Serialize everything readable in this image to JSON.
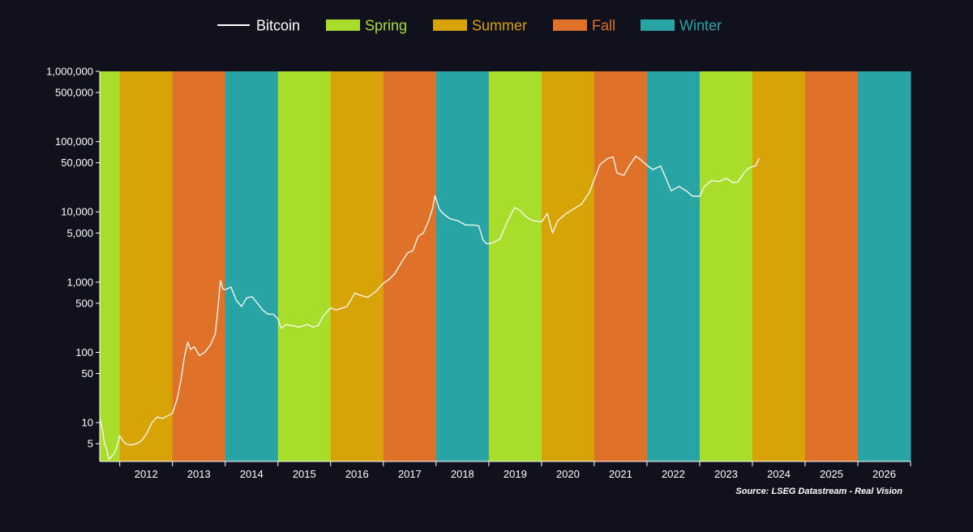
{
  "colors": {
    "background": "#10111c",
    "spring": "#a9dd2b",
    "summer": "#d8a306",
    "fall": "#e07129",
    "winter": "#29a4a4",
    "line": "#ffffff"
  },
  "legend": [
    {
      "label": "Bitcoin",
      "kind": "line",
      "color": "#ffffff"
    },
    {
      "label": "Spring",
      "kind": "swatch",
      "color": "#a9dd2b"
    },
    {
      "label": "Summer",
      "kind": "swatch",
      "color": "#d8a306"
    },
    {
      "label": "Fall",
      "kind": "swatch",
      "color": "#e07129"
    },
    {
      "label": "Winter",
      "kind": "swatch",
      "color": "#29a4a4"
    }
  ],
  "source": "Source: LSEG Datastream - Real Vision",
  "chart_data": {
    "type": "line",
    "scale": "log",
    "xlim": [
      2011.61,
      2026.99
    ],
    "ylim": [
      2.8,
      1000000
    ],
    "legend_position": "top",
    "grid": false,
    "x_ticks": [
      "2012",
      "2013",
      "2014",
      "2015",
      "2016",
      "2017",
      "2018",
      "2019",
      "2020",
      "2021",
      "2022",
      "2023",
      "2024",
      "2025",
      "2026"
    ],
    "y_ticks": [
      {
        "value": 1000000,
        "label": "1,000,000"
      },
      {
        "value": 500000,
        "label": "500,000"
      },
      {
        "value": 100000,
        "label": "100,000"
      },
      {
        "value": 50000,
        "label": "50,000"
      },
      {
        "value": 10000,
        "label": "10,000"
      },
      {
        "value": 5000,
        "label": "5,000"
      },
      {
        "value": 1000,
        "label": "1,000"
      },
      {
        "value": 500,
        "label": "500"
      },
      {
        "value": 100,
        "label": "100"
      },
      {
        "value": 50,
        "label": "50"
      },
      {
        "value": 10,
        "label": "10"
      },
      {
        "value": 5,
        "label": "5"
      }
    ],
    "seasons": [
      {
        "season": "spring",
        "start": 2011.61,
        "end": 2011.99
      },
      {
        "season": "summer",
        "start": 2011.99,
        "end": 2012.99
      },
      {
        "season": "fall",
        "start": 2012.99,
        "end": 2013.99
      },
      {
        "season": "winter",
        "start": 2013.99,
        "end": 2014.99
      },
      {
        "season": "spring",
        "start": 2014.99,
        "end": 2015.99
      },
      {
        "season": "summer",
        "start": 2015.99,
        "end": 2016.99
      },
      {
        "season": "fall",
        "start": 2016.99,
        "end": 2017.99
      },
      {
        "season": "winter",
        "start": 2017.99,
        "end": 2018.99
      },
      {
        "season": "spring",
        "start": 2018.99,
        "end": 2019.99
      },
      {
        "season": "summer",
        "start": 2019.99,
        "end": 2020.99
      },
      {
        "season": "fall",
        "start": 2020.99,
        "end": 2021.99
      },
      {
        "season": "winter",
        "start": 2021.99,
        "end": 2022.99
      },
      {
        "season": "spring",
        "start": 2022.99,
        "end": 2023.99
      },
      {
        "season": "summer",
        "start": 2023.99,
        "end": 2024.99
      },
      {
        "season": "fall",
        "start": 2024.99,
        "end": 2025.99
      },
      {
        "season": "winter",
        "start": 2025.99,
        "end": 2026.99
      }
    ],
    "series": [
      {
        "name": "Bitcoin",
        "points": [
          [
            2011.62,
            11
          ],
          [
            2011.66,
            8
          ],
          [
            2011.7,
            5
          ],
          [
            2011.74,
            4.2
          ],
          [
            2011.78,
            3
          ],
          [
            2011.82,
            3.2
          ],
          [
            2011.86,
            3.5
          ],
          [
            2011.9,
            3.8
          ],
          [
            2011.95,
            5
          ],
          [
            2011.99,
            6.5
          ],
          [
            2012.05,
            5.5
          ],
          [
            2012.1,
            5
          ],
          [
            2012.2,
            4.8
          ],
          [
            2012.3,
            5
          ],
          [
            2012.4,
            5.5
          ],
          [
            2012.5,
            7
          ],
          [
            2012.6,
            10
          ],
          [
            2012.7,
            12
          ],
          [
            2012.8,
            11.5
          ],
          [
            2012.9,
            12.5
          ],
          [
            2012.99,
            13.5
          ],
          [
            2013.08,
            22
          ],
          [
            2013.15,
            40
          ],
          [
            2013.22,
            90
          ],
          [
            2013.28,
            140
          ],
          [
            2013.33,
            110
          ],
          [
            2013.4,
            120
          ],
          [
            2013.5,
            90
          ],
          [
            2013.6,
            100
          ],
          [
            2013.7,
            125
          ],
          [
            2013.8,
            180
          ],
          [
            2013.85,
            400
          ],
          [
            2013.9,
            1050
          ],
          [
            2013.95,
            800
          ],
          [
            2013.99,
            780
          ],
          [
            2014.1,
            850
          ],
          [
            2014.2,
            550
          ],
          [
            2014.3,
            450
          ],
          [
            2014.4,
            600
          ],
          [
            2014.5,
            620
          ],
          [
            2014.6,
            500
          ],
          [
            2014.7,
            400
          ],
          [
            2014.8,
            350
          ],
          [
            2014.9,
            350
          ],
          [
            2014.99,
            300
          ],
          [
            2015.05,
            220
          ],
          [
            2015.15,
            250
          ],
          [
            2015.25,
            240
          ],
          [
            2015.4,
            230
          ],
          [
            2015.55,
            250
          ],
          [
            2015.65,
            230
          ],
          [
            2015.75,
            240
          ],
          [
            2015.85,
            330
          ],
          [
            2015.99,
            430
          ],
          [
            2016.1,
            400
          ],
          [
            2016.3,
            450
          ],
          [
            2016.45,
            700
          ],
          [
            2016.55,
            650
          ],
          [
            2016.7,
            610
          ],
          [
            2016.85,
            740
          ],
          [
            2016.99,
            960
          ],
          [
            2017.1,
            1100
          ],
          [
            2017.2,
            1300
          ],
          [
            2017.35,
            2000
          ],
          [
            2017.45,
            2600
          ],
          [
            2017.55,
            2800
          ],
          [
            2017.65,
            4500
          ],
          [
            2017.75,
            5000
          ],
          [
            2017.85,
            7500
          ],
          [
            2017.92,
            11000
          ],
          [
            2017.97,
            17000
          ],
          [
            2018.05,
            11000
          ],
          [
            2018.12,
            9500
          ],
          [
            2018.25,
            8000
          ],
          [
            2018.4,
            7500
          ],
          [
            2018.55,
            6500
          ],
          [
            2018.7,
            6500
          ],
          [
            2018.8,
            6300
          ],
          [
            2018.88,
            4000
          ],
          [
            2018.95,
            3500
          ],
          [
            2019.05,
            3600
          ],
          [
            2019.2,
            4100
          ],
          [
            2019.35,
            7500
          ],
          [
            2019.48,
            11500
          ],
          [
            2019.58,
            10500
          ],
          [
            2019.7,
            8500
          ],
          [
            2019.82,
            7500
          ],
          [
            2019.99,
            7200
          ],
          [
            2020.1,
            9500
          ],
          [
            2020.2,
            5000
          ],
          [
            2020.3,
            7500
          ],
          [
            2020.45,
            9400
          ],
          [
            2020.6,
            11000
          ],
          [
            2020.75,
            13000
          ],
          [
            2020.9,
            19000
          ],
          [
            2020.99,
            29000
          ],
          [
            2021.1,
            47000
          ],
          [
            2021.25,
            58000
          ],
          [
            2021.35,
            60000
          ],
          [
            2021.42,
            36000
          ],
          [
            2021.55,
            33000
          ],
          [
            2021.65,
            45000
          ],
          [
            2021.78,
            62000
          ],
          [
            2021.85,
            57000
          ],
          [
            2021.99,
            46000
          ],
          [
            2022.1,
            40000
          ],
          [
            2022.25,
            45000
          ],
          [
            2022.35,
            30000
          ],
          [
            2022.45,
            20000
          ],
          [
            2022.6,
            23000
          ],
          [
            2022.75,
            19500
          ],
          [
            2022.85,
            16800
          ],
          [
            2022.99,
            16600
          ],
          [
            2023.08,
            23000
          ],
          [
            2023.22,
            28000
          ],
          [
            2023.35,
            27000
          ],
          [
            2023.5,
            30000
          ],
          [
            2023.62,
            26000
          ],
          [
            2023.72,
            27000
          ],
          [
            2023.82,
            35000
          ],
          [
            2023.92,
            42000
          ],
          [
            2023.99,
            44000
          ],
          [
            2024.05,
            45000
          ],
          [
            2024.12,
            58000
          ]
        ]
      }
    ]
  }
}
